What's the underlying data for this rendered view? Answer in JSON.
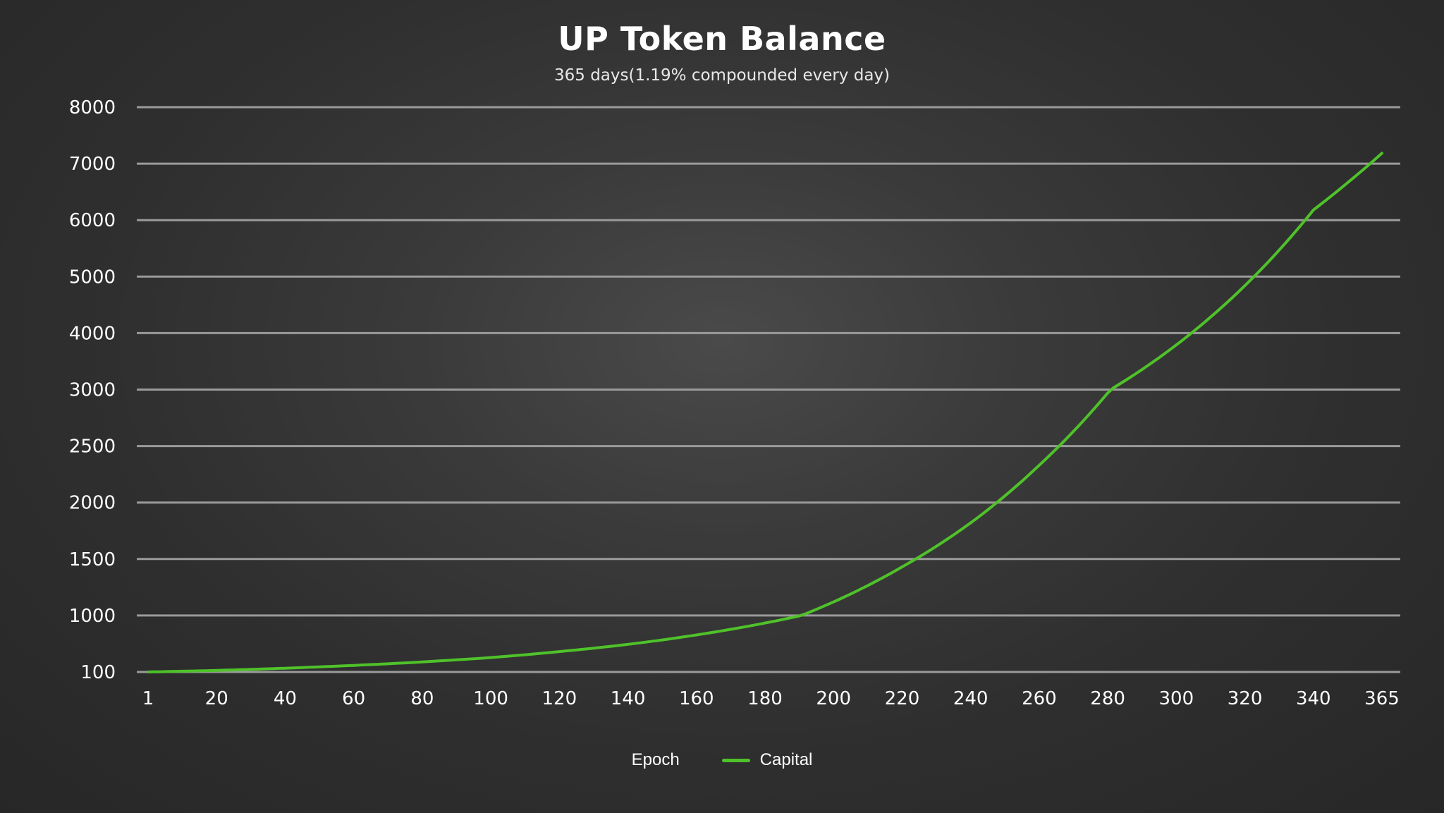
{
  "chart_data": {
    "type": "line",
    "title": "UP Token Balance",
    "subtitle": "365 days(1.19% compounded every day)",
    "x_ticks": [
      1,
      20,
      40,
      60,
      80,
      100,
      120,
      140,
      160,
      180,
      200,
      220,
      240,
      260,
      280,
      300,
      320,
      340,
      365
    ],
    "y_ticks": [
      "100",
      "1000",
      "1500",
      "2000",
      "2500",
      "3000",
      "4000",
      "5000",
      "6000",
      "7000",
      "8000"
    ],
    "grid": true,
    "legend_position": "bottom-center",
    "legend": [
      {
        "label": "Epoch",
        "color": ""
      },
      {
        "label": "Capital",
        "color": "#4fc22a"
      }
    ],
    "series": [
      {
        "name": "Capital",
        "color": "#4fc22a",
        "x": [
          1,
          20,
          40,
          60,
          80,
          100,
          120,
          140,
          160,
          180,
          200,
          220,
          240,
          260,
          280,
          300,
          320,
          340,
          365
        ],
        "y": [
          100,
          125,
          160,
          205,
          260,
          330,
          425,
          540,
          690,
          880,
          1120,
          1430,
          1820,
          2330,
          2970,
          3790,
          4840,
          6180,
          7185
        ]
      }
    ]
  }
}
